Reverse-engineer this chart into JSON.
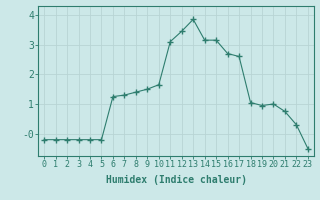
{
  "x": [
    0,
    1,
    2,
    3,
    4,
    5,
    6,
    7,
    8,
    9,
    10,
    11,
    12,
    13,
    14,
    15,
    16,
    17,
    18,
    19,
    20,
    21,
    22,
    23
  ],
  "y": [
    -0.2,
    -0.2,
    -0.2,
    -0.2,
    -0.2,
    -0.2,
    1.25,
    1.3,
    1.4,
    1.5,
    1.65,
    3.1,
    3.45,
    3.85,
    3.15,
    3.15,
    2.7,
    2.6,
    1.05,
    0.95,
    1.0,
    0.75,
    0.3,
    -0.5
  ],
  "line_color": "#2e7d6e",
  "marker": "+",
  "marker_color": "#2e7d6e",
  "bg_color": "#cce8e8",
  "grid_color": "#b8d4d4",
  "xlabel": "Humidex (Indice chaleur)",
  "ylim": [
    -0.75,
    4.3
  ],
  "xlim": [
    -0.5,
    23.5
  ],
  "xticks": [
    0,
    1,
    2,
    3,
    4,
    5,
    6,
    7,
    8,
    9,
    10,
    11,
    12,
    13,
    14,
    15,
    16,
    17,
    18,
    19,
    20,
    21,
    22,
    23
  ],
  "yticks": [
    0,
    1,
    2,
    3,
    4
  ],
  "ytick_labels": [
    "-0",
    "1",
    "2",
    "3",
    "4"
  ],
  "axis_color": "#2e7d6e",
  "label_color": "#2e7d6e",
  "tick_color": "#2e7d6e",
  "xlabel_fontsize": 7,
  "tick_fontsize": 6,
  "figsize": [
    3.2,
    2.0
  ],
  "dpi": 100
}
